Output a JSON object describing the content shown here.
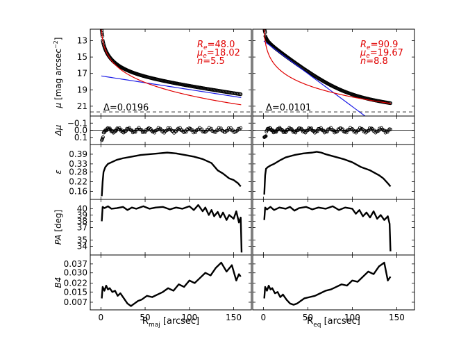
{
  "chart_data": {
    "type": "line",
    "title": "",
    "columns": [
      {
        "name": "major-axis",
        "xlabel_main": "R",
        "xlabel_sub": "maj",
        "xlabel_unit": " [arcsec]",
        "xlim": [
          -12,
          170
        ],
        "xticks": [
          0,
          50,
          100,
          150
        ]
      },
      {
        "name": "equivalent-axis",
        "xlabel_main": "R",
        "xlabel_sub": "eq",
        "xlabel_unit": " [arcsec]",
        "xlim": [
          -12,
          170
        ],
        "xticks": [
          0,
          50,
          100,
          150
        ]
      }
    ],
    "rows": [
      {
        "name": "mu",
        "ylabel": "μ [mag arcsec⁻²]",
        "ylim": [
          22.2,
          11.6
        ],
        "yticks": [
          13,
          15,
          17,
          19,
          21
        ],
        "ytick_labels": [
          "13",
          "15",
          "17",
          "19",
          "21"
        ]
      },
      {
        "name": "delta-mu",
        "ylabel": "Δμ",
        "ylim": [
          0.2,
          -0.2
        ],
        "yticks": [
          -0.1,
          0.0,
          0.1
        ],
        "ytick_labels": [
          "−0.1",
          "0.0",
          "0.1"
        ]
      },
      {
        "name": "ellipticity",
        "ylabel": "ε",
        "ylim": [
          0.11,
          0.45
        ],
        "yticks": [
          0.16,
          0.22,
          0.28,
          0.33,
          0.39
        ],
        "ytick_labels": [
          "0.16",
          "0.22",
          "0.28",
          "0.33",
          "0.39"
        ]
      },
      {
        "name": "position-angle",
        "ylabel": "PA [deg]",
        "ylim": [
          32.6,
          41.5
        ],
        "yticks": [
          34,
          35,
          37,
          38,
          39,
          40
        ],
        "ytick_labels": [
          "34",
          "35",
          "37",
          "38",
          "39",
          "40"
        ]
      },
      {
        "name": "b4",
        "ylabel": "B4",
        "ylim": [
          0.001,
          0.044
        ],
        "yticks": [
          0.007,
          0.015,
          0.022,
          0.03,
          0.037
        ],
        "ytick_labels": [
          "0.007",
          "0.015",
          "0.022",
          "0.030",
          "0.037"
        ]
      }
    ],
    "fits": [
      {
        "Re_label": "R",
        "Re_sub": "e",
        "Re_value": "=48.0",
        "mue_label": "μ",
        "mue_sub": "e",
        "mue_value": "=18.02",
        "n_label": "n",
        "n_value": "=5.5",
        "delta_label": "Δ",
        "delta_value": "=0.0196",
        "Re": 48.0,
        "mue": 18.02,
        "n": 5.5,
        "disk": {
          "mu0": 17.3,
          "h": 65
        },
        "rmax": 158,
        "sky_level": 21.7
      },
      {
        "Re_label": "R",
        "Re_sub": "e",
        "Re_value": "=90.9",
        "mue_label": "μ",
        "mue_sub": "e",
        "mue_value": "=19.67",
        "n_label": "n",
        "n_value": "=8.8",
        "delta_label": "Δ",
        "delta_value": "=0.0101",
        "Re": 90.9,
        "mue": 19.67,
        "n": 8.8,
        "disk": {
          "mu0": 13.0,
          "h": 13.5
        },
        "rmax": 143,
        "sky_level": 21.7
      }
    ],
    "profiles": {
      "ellipticity": [
        {
          "x": [
            1,
            2,
            3,
            5,
            8,
            12,
            18,
            25,
            35,
            45,
            55,
            65,
            75,
            85,
            95,
            105,
            115,
            125,
            132,
            138,
            145,
            150,
            155,
            158
          ],
          "y": [
            0.13,
            0.22,
            0.28,
            0.31,
            0.33,
            0.34,
            0.355,
            0.365,
            0.375,
            0.385,
            0.39,
            0.395,
            0.4,
            0.395,
            0.385,
            0.375,
            0.36,
            0.335,
            0.29,
            0.27,
            0.24,
            0.23,
            0.21,
            0.19
          ]
        },
        {
          "x": [
            1,
            2,
            3,
            5,
            8,
            12,
            18,
            25,
            35,
            45,
            55,
            60,
            65,
            70,
            80,
            90,
            100,
            110,
            120,
            130,
            135,
            140,
            143
          ],
          "y": [
            0.14,
            0.26,
            0.3,
            0.31,
            0.32,
            0.33,
            0.35,
            0.37,
            0.385,
            0.395,
            0.4,
            0.405,
            0.4,
            0.39,
            0.375,
            0.36,
            0.34,
            0.31,
            0.29,
            0.26,
            0.24,
            0.21,
            0.19
          ]
        }
      ],
      "position_angle": [
        {
          "x": [
            1,
            2,
            4,
            8,
            12,
            18,
            25,
            30,
            35,
            40,
            48,
            55,
            62,
            70,
            78,
            85,
            92,
            100,
            105,
            110,
            115,
            118,
            122,
            125,
            128,
            132,
            135,
            138,
            142,
            145,
            150,
            153,
            156,
            158,
            159
          ],
          "y": [
            38.0,
            40.3,
            40.1,
            40.4,
            40.0,
            40.1,
            40.3,
            39.8,
            40.2,
            40.0,
            40.4,
            40.0,
            40.2,
            40.3,
            39.9,
            40.2,
            40.0,
            40.4,
            39.8,
            40.6,
            39.6,
            40.2,
            39.0,
            39.8,
            38.8,
            39.5,
            38.6,
            39.4,
            38.2,
            39.0,
            38.4,
            39.6,
            37.8,
            38.6,
            33.0
          ]
        },
        {
          "x": [
            1,
            2,
            4,
            8,
            12,
            18,
            25,
            30,
            35,
            40,
            48,
            55,
            62,
            70,
            78,
            85,
            92,
            100,
            104,
            108,
            112,
            116,
            120,
            124,
            128,
            132,
            136,
            140,
            142,
            143
          ],
          "y": [
            38.2,
            40.2,
            39.9,
            40.3,
            39.8,
            40.2,
            40.0,
            40.3,
            39.7,
            40.1,
            40.3,
            39.9,
            40.2,
            40.0,
            40.4,
            39.8,
            40.2,
            40.0,
            39.2,
            39.8,
            38.8,
            39.4,
            38.6,
            39.6,
            38.4,
            39.0,
            38.2,
            38.8,
            37.6,
            33.2
          ]
        }
      ],
      "b4": [
        {
          "x": [
            1,
            2,
            4,
            6,
            8,
            10,
            13,
            16,
            19,
            22,
            26,
            30,
            34,
            38,
            42,
            46,
            52,
            58,
            64,
            70,
            76,
            82,
            88,
            94,
            100,
            106,
            112,
            118,
            124,
            130,
            136,
            142,
            148,
            153,
            156,
            158
          ],
          "y": [
            0.01,
            0.019,
            0.016,
            0.02,
            0.017,
            0.018,
            0.015,
            0.016,
            0.012,
            0.014,
            0.01,
            0.006,
            0.004,
            0.006,
            0.008,
            0.009,
            0.012,
            0.011,
            0.013,
            0.015,
            0.018,
            0.016,
            0.021,
            0.019,
            0.024,
            0.022,
            0.026,
            0.03,
            0.028,
            0.034,
            0.038,
            0.031,
            0.036,
            0.024,
            0.029,
            0.027
          ]
        },
        {
          "x": [
            1,
            2,
            4,
            6,
            8,
            10,
            13,
            16,
            19,
            22,
            26,
            30,
            34,
            38,
            42,
            46,
            52,
            58,
            64,
            70,
            76,
            82,
            88,
            94,
            100,
            106,
            112,
            118,
            124,
            130,
            136,
            140,
            143
          ],
          "y": [
            0.01,
            0.019,
            0.016,
            0.02,
            0.017,
            0.018,
            0.014,
            0.015,
            0.011,
            0.013,
            0.009,
            0.006,
            0.005,
            0.006,
            0.008,
            0.01,
            0.011,
            0.012,
            0.014,
            0.016,
            0.017,
            0.019,
            0.021,
            0.02,
            0.024,
            0.023,
            0.027,
            0.031,
            0.029,
            0.035,
            0.038,
            0.024,
            0.027
          ]
        }
      ]
    }
  }
}
